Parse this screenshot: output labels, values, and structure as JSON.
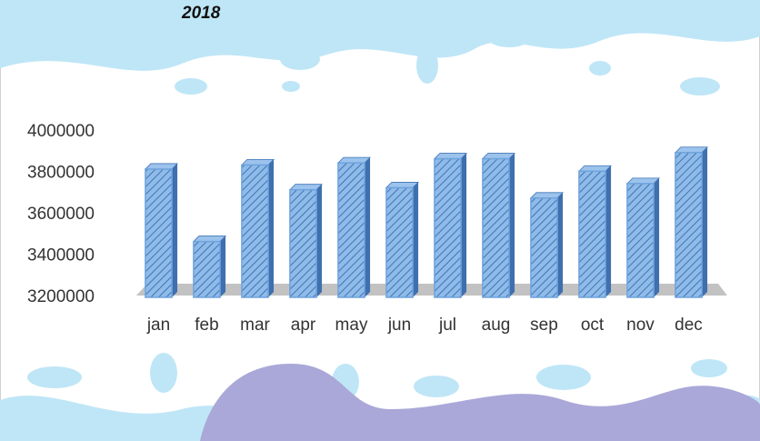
{
  "chart_data": {
    "type": "bar",
    "title": "2018",
    "categories": [
      "jan",
      "feb",
      "mar",
      "apr",
      "may",
      "jun",
      "jul",
      "aug",
      "sep",
      "oct",
      "nov",
      "dec"
    ],
    "values": [
      3820000,
      3470000,
      3840000,
      3720000,
      3850000,
      3730000,
      3870000,
      3870000,
      3680000,
      3810000,
      3750000,
      3900000
    ],
    "color": "#6fa3dc",
    "ylim": [
      3200000,
      4000000
    ],
    "yticks": [
      3200000,
      3400000,
      3600000,
      3800000,
      4000000
    ],
    "grid": false
  }
}
